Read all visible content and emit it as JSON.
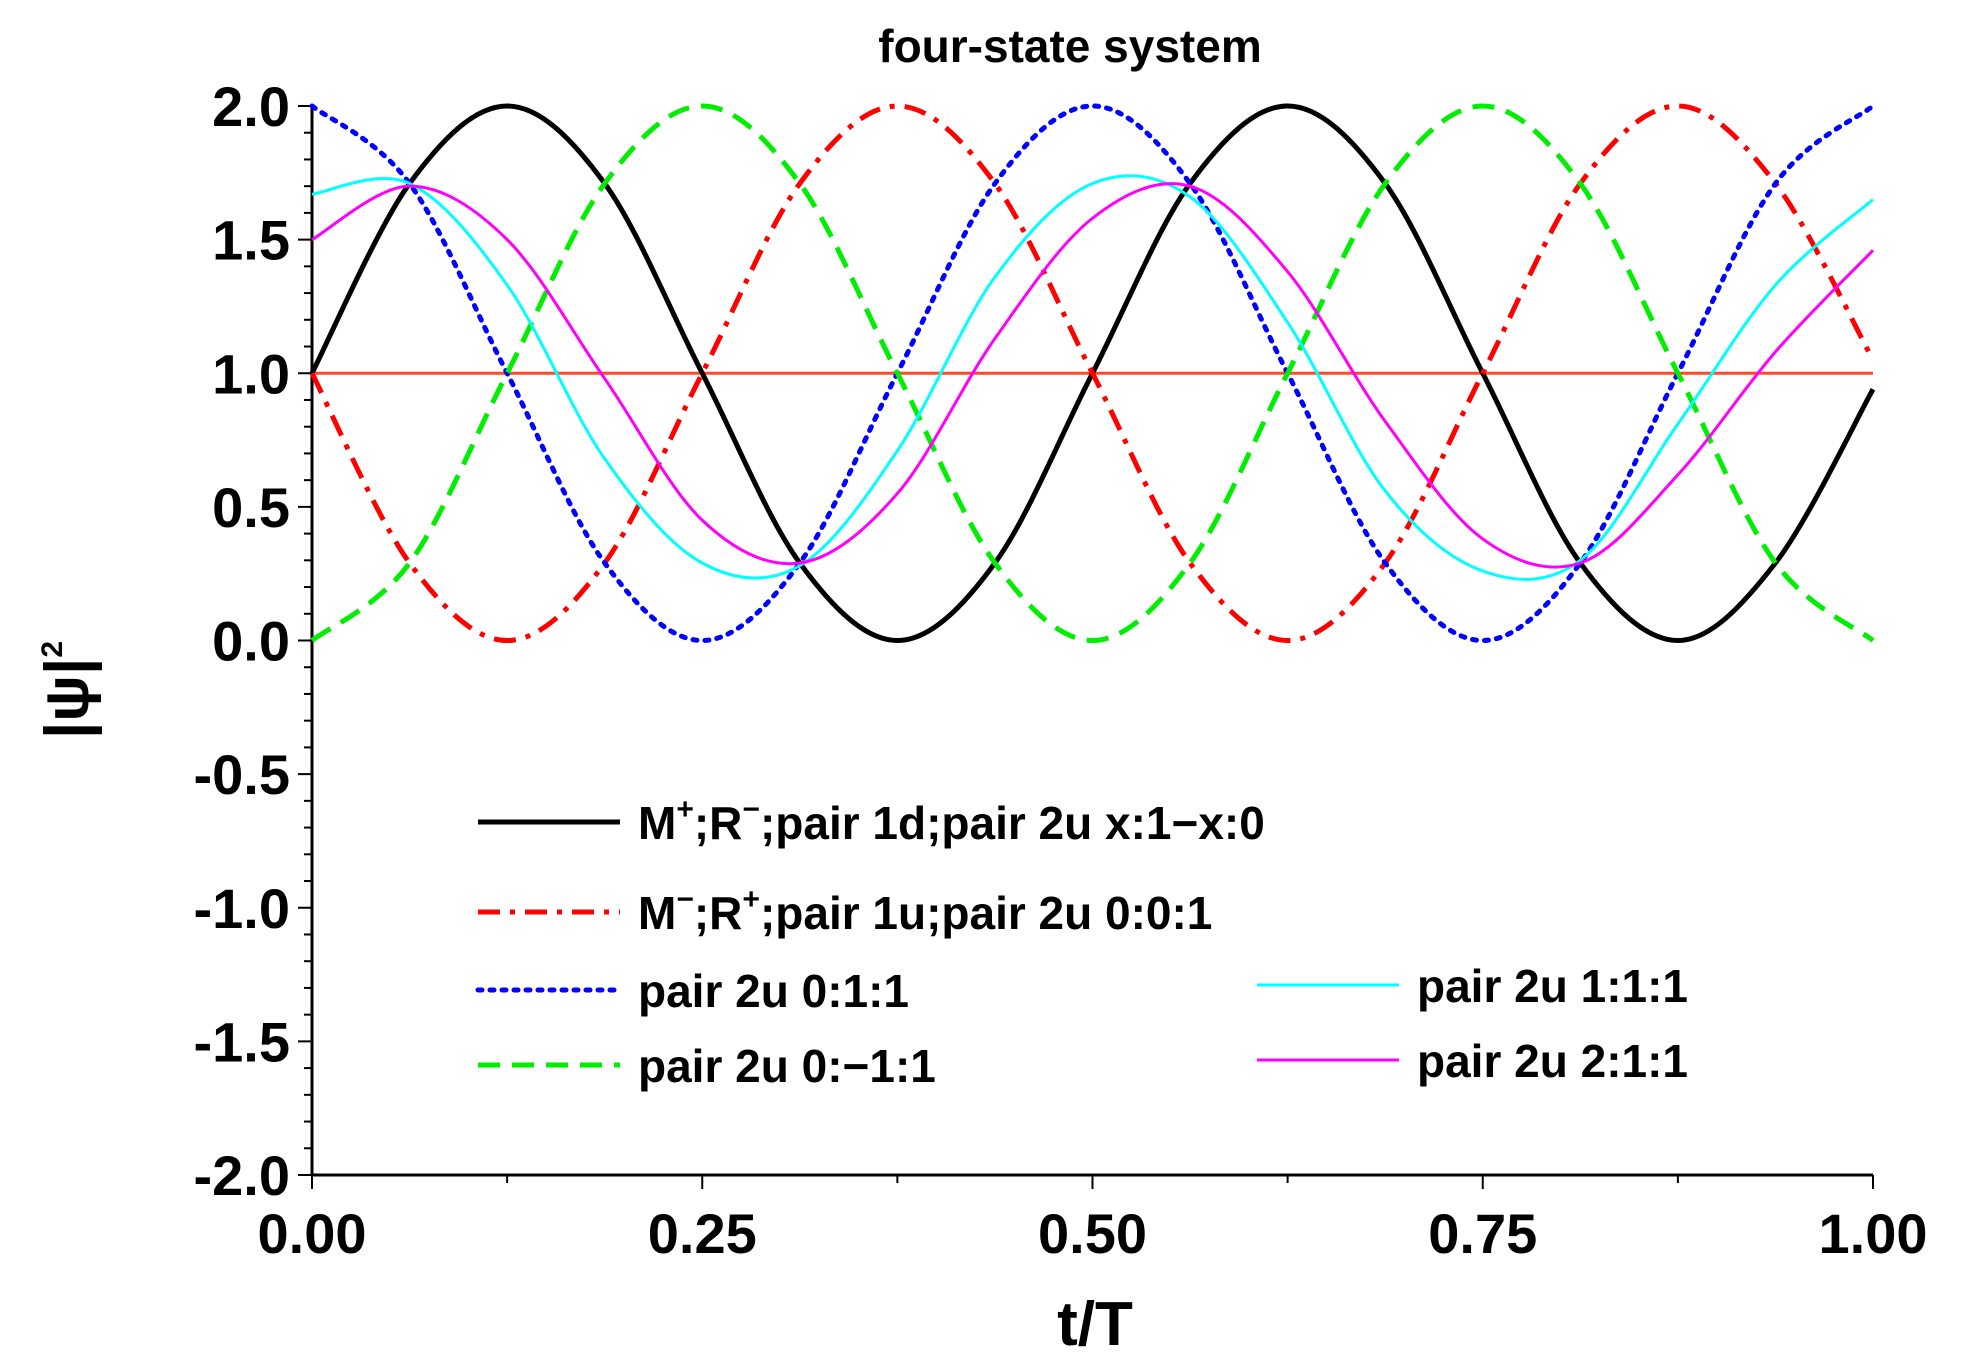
{
  "chart_data": {
    "type": "line",
    "title": "four-state system",
    "xlabel": "t/T",
    "ylabel_base": "|ψ|",
    "ylabel_sup": "2",
    "xlim": [
      0,
      1
    ],
    "ylim": [
      -2,
      2
    ],
    "x_ticks": [
      {
        "value": 0.0,
        "label": "0.00"
      },
      {
        "value": 0.25,
        "label": "0.25"
      },
      {
        "value": 0.5,
        "label": "0.50"
      },
      {
        "value": 0.75,
        "label": "0.75"
      },
      {
        "value": 1.0,
        "label": "1.00"
      }
    ],
    "y_ticks": [
      {
        "value": 2.0,
        "label": "2.0"
      },
      {
        "value": 1.5,
        "label": "1.5"
      },
      {
        "value": 1.0,
        "label": "1.0"
      },
      {
        "value": 0.5,
        "label": "0.5"
      },
      {
        "value": 0.0,
        "label": "0.0"
      },
      {
        "value": -0.5,
        "label": "-0.5"
      },
      {
        "value": -1.0,
        "label": "-1.0"
      },
      {
        "value": -1.5,
        "label": "-1.5"
      },
      {
        "value": -2.0,
        "label": "-2.0"
      }
    ],
    "grid": false,
    "legend_position": "lower-center",
    "x": [
      0.0,
      0.0625,
      0.125,
      0.1875,
      0.25,
      0.3125,
      0.375,
      0.4375,
      0.5,
      0.5625,
      0.625,
      0.6875,
      0.75,
      0.8125,
      0.875,
      0.9375,
      1.0
    ],
    "series": [
      {
        "name_parts": [
          [
            "M",
            ""
          ],
          [
            "+",
            "sup"
          ],
          [
            ";R",
            ""
          ],
          [
            "−",
            "sup"
          ],
          [
            ";pair 1d;pair 2u x:1−x:0",
            ""
          ]
        ],
        "color": "#000000",
        "dash": "solid",
        "width": 5,
        "values": [
          1.0,
          1.71,
          2.0,
          1.71,
          1.0,
          0.29,
          0.0,
          0.29,
          1.0,
          1.71,
          2.0,
          1.71,
          1.0,
          0.29,
          0.0,
          0.29,
          0.94
        ]
      },
      {
        "name_parts": [
          [
            "M",
            ""
          ],
          [
            "−",
            "sup"
          ],
          [
            ";R",
            ""
          ],
          [
            "+",
            "sup"
          ],
          [
            ";pair 1u;pair 2u 0:0:1",
            ""
          ]
        ],
        "color": "#ff0000",
        "dash": "dashdot",
        "width": 5,
        "values": [
          1.0,
          0.29,
          0.0,
          0.29,
          1.0,
          1.71,
          2.0,
          1.71,
          1.0,
          0.29,
          0.0,
          0.29,
          1.0,
          1.71,
          2.0,
          1.71,
          1.05
        ]
      },
      {
        "name_parts": [
          [
            "pair 2u 0:1:1",
            ""
          ]
        ],
        "color": "#0000ff",
        "dash": "dot",
        "width": 5,
        "values": [
          2.0,
          1.71,
          1.0,
          0.29,
          0.0,
          0.29,
          1.0,
          1.71,
          2.0,
          1.71,
          1.0,
          0.29,
          0.0,
          0.29,
          1.0,
          1.71,
          2.0
        ]
      },
      {
        "name_parts": [
          [
            "pair 2u 0:−1:1",
            ""
          ]
        ],
        "color": "#00ee00",
        "dash": "dash",
        "width": 5,
        "values": [
          0.0,
          0.29,
          1.0,
          1.71,
          2.0,
          1.71,
          1.0,
          0.29,
          0.0,
          0.29,
          1.0,
          1.71,
          2.0,
          1.71,
          1.0,
          0.29,
          0.0
        ]
      },
      {
        "name_parts": [
          [
            "pair 2u 1:1:1",
            ""
          ]
        ],
        "color": "#00ffff",
        "dash": "solid",
        "width": 3,
        "values": [
          1.67,
          1.71,
          1.33,
          0.68,
          0.29,
          0.28,
          0.71,
          1.36,
          1.71,
          1.66,
          1.19,
          0.56,
          0.26,
          0.3,
          0.81,
          1.33,
          1.65
        ]
      },
      {
        "name_parts": [
          [
            "pair 2u 2:1:1",
            ""
          ]
        ],
        "color": "#ff00ff",
        "dash": "solid",
        "width": 3,
        "values": [
          1.5,
          1.7,
          1.5,
          0.98,
          0.45,
          0.29,
          0.55,
          1.13,
          1.58,
          1.7,
          1.38,
          0.82,
          0.38,
          0.29,
          0.62,
          1.08,
          1.46
        ]
      },
      {
        "name_parts": [],
        "color": "#ff4a2a",
        "dash": "solid",
        "width": 3,
        "values": [
          1.0,
          1.0,
          1.0,
          1.0,
          1.0,
          1.0,
          1.0,
          1.0,
          1.0,
          1.0,
          1.0,
          1.0,
          1.0,
          1.0,
          1.0,
          1.0,
          1.0
        ]
      }
    ]
  }
}
